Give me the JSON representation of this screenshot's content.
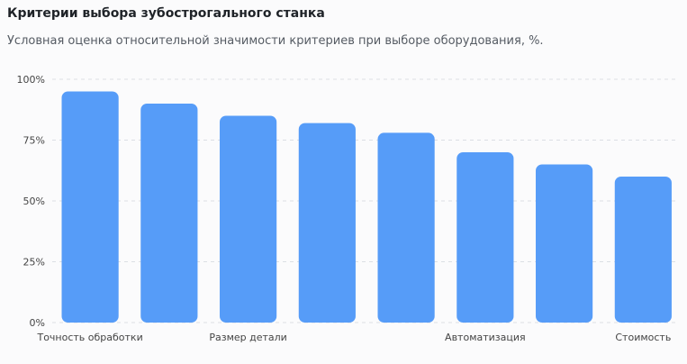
{
  "header": {
    "title": "Критерии выбора зубострогального станка",
    "subtitle": "Условная оценка относительной значимости критериев при выборе оборудования, %."
  },
  "chart_data": {
    "type": "bar",
    "categories": [
      "Точность обработки",
      "",
      "Размер детали",
      "",
      "",
      "Автоматизация",
      "",
      "Стоимость"
    ],
    "values": [
      95,
      90,
      85,
      82,
      78,
      70,
      65,
      60
    ],
    "ylim": [
      0,
      100
    ],
    "yticks": [
      0,
      25,
      50,
      75,
      100
    ],
    "ytick_labels": [
      "0%",
      "25%",
      "50%",
      "75%",
      "100%"
    ],
    "grid": true,
    "legend": "none",
    "colors": {
      "bar": "#569cf8",
      "grid": "#dcdfe4"
    }
  }
}
